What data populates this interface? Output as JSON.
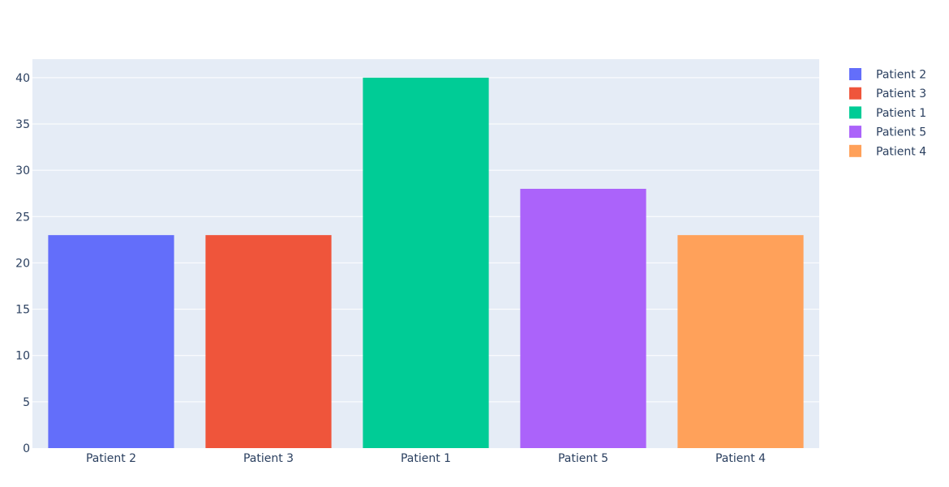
{
  "chart_data": {
    "type": "bar",
    "title": "",
    "xlabel": "",
    "ylabel": "",
    "categories": [
      "Patient 2",
      "Patient 3",
      "Patient 1",
      "Patient 5",
      "Patient 4"
    ],
    "series": [
      {
        "name": "Patient 2",
        "category": "Patient 2",
        "value": 23,
        "color": "#636efa"
      },
      {
        "name": "Patient 3",
        "category": "Patient 3",
        "value": 23,
        "color": "#EF553B"
      },
      {
        "name": "Patient 1",
        "category": "Patient 1",
        "value": 40,
        "color": "#00cc96"
      },
      {
        "name": "Patient 5",
        "category": "Patient 5",
        "value": 28,
        "color": "#ab63fa"
      },
      {
        "name": "Patient 4",
        "category": "Patient 4",
        "value": 23,
        "color": "#FFA15A"
      }
    ],
    "ylim": [
      0,
      42
    ],
    "yticks": [
      0,
      5,
      10,
      15,
      20,
      25,
      30,
      35,
      40
    ],
    "grid": true,
    "legend_position": "top-right",
    "plot_background": "#E5ECF6"
  }
}
